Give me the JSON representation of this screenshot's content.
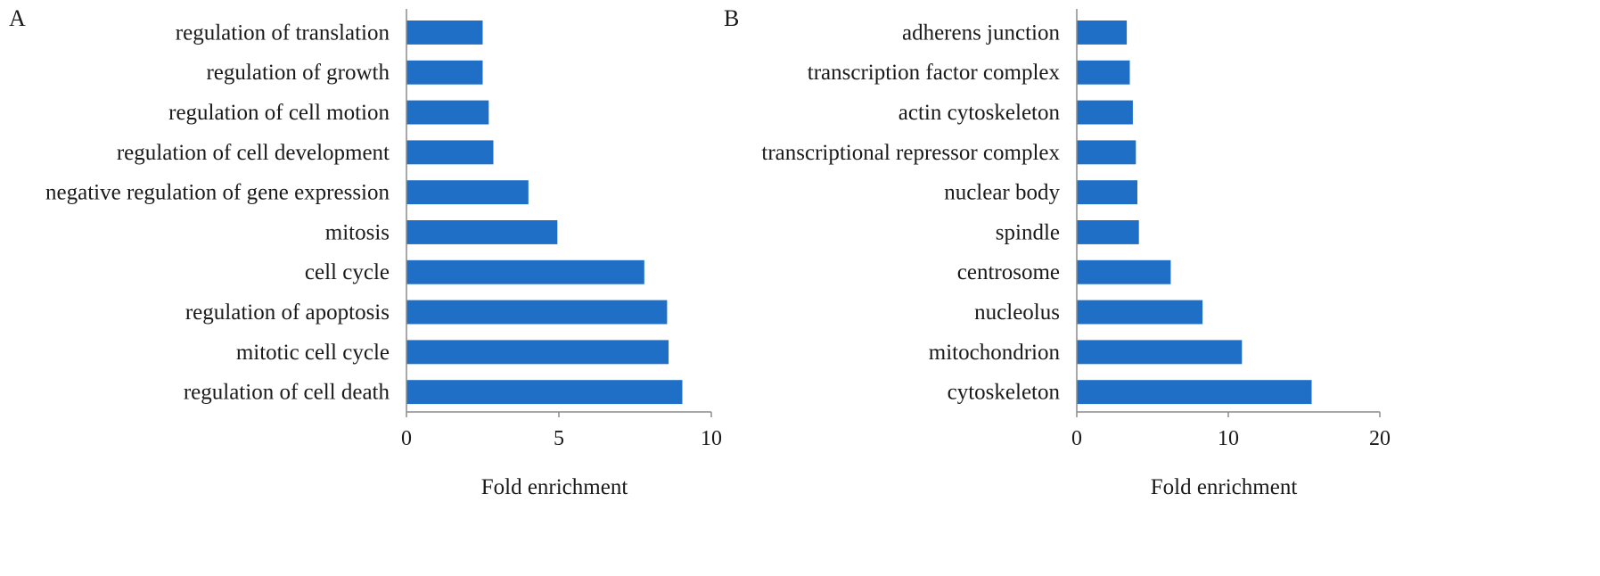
{
  "chart_data": [
    {
      "type": "bar",
      "orientation": "horizontal",
      "panel_label": "A",
      "categories": [
        "regulation of translation",
        "regulation of growth",
        "regulation of cell motion",
        "regulation of cell development",
        "negative regulation of gene expression",
        "mitosis",
        "cell cycle",
        "regulation of apoptosis",
        "mitotic cell cycle",
        "regulation of cell death"
      ],
      "values": [
        2.5,
        2.5,
        2.7,
        2.85,
        4.0,
        4.95,
        7.8,
        8.55,
        8.6,
        9.05
      ],
      "xlabel": "Fold enrichment",
      "ylabel": "",
      "xlim": [
        0,
        10
      ],
      "xticks": [
        0,
        5,
        10
      ],
      "grid": false,
      "bar_color": "#1f6fc6"
    },
    {
      "type": "bar",
      "orientation": "horizontal",
      "panel_label": "B",
      "categories": [
        "adherens junction",
        "transcription factor complex",
        "actin cytoskeleton",
        "transcriptional repressor complex",
        "nuclear body",
        "spindle",
        "centrosome",
        "nucleolus",
        "mitochondrion",
        "cytoskeleton"
      ],
      "values": [
        3.3,
        3.5,
        3.7,
        3.9,
        4.0,
        4.1,
        6.2,
        8.3,
        10.9,
        15.5
      ],
      "xlabel": "Fold enrichment",
      "ylabel": "",
      "xlim": [
        0,
        20
      ],
      "xticks": [
        0,
        10,
        20
      ],
      "grid": false,
      "bar_color": "#1f6fc6"
    }
  ]
}
